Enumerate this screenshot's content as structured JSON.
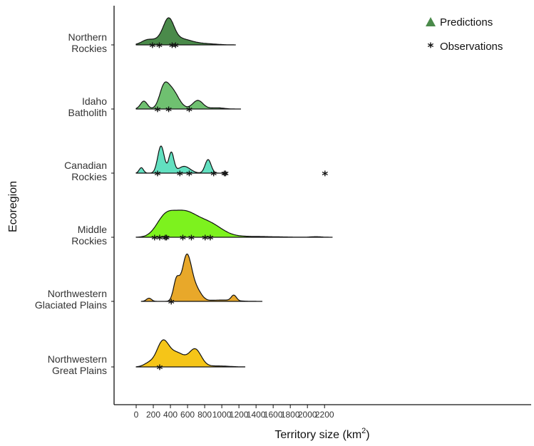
{
  "chart_data": {
    "type": "area",
    "subtype": "ridgeline-density",
    "xlabel": "Territory size (km",
    "xlabel_sup": "2",
    "xlabel_close": ")",
    "ylabel": "Ecoregion",
    "xlim": [
      -130,
      2300
    ],
    "xticks": [
      0,
      200,
      400,
      600,
      800,
      1000,
      1200,
      1400,
      1600,
      1800,
      2000,
      2200
    ],
    "grid": false,
    "legend_position": "top-right",
    "legend": [
      {
        "symbol": "triangle",
        "label": "Predictions",
        "color": "#4a8a4a"
      },
      {
        "symbol": "star",
        "label": "Observations",
        "color": "#111111"
      }
    ],
    "series": [
      {
        "label_lines": [
          "Northern",
          "Rockies"
        ],
        "color": "#4a8a4a",
        "scale": 1.0,
        "range": [
          0,
          1160
        ],
        "components": [
          [
            120,
            60,
            0.15
          ],
          [
            380,
            60,
            1.0
          ],
          [
            330,
            140,
            0.35
          ],
          [
            560,
            110,
            0.2
          ],
          [
            800,
            130,
            0.06
          ]
        ],
        "observations": [
          190,
          270,
          420,
          460
        ]
      },
      {
        "label_lines": [
          "Idaho",
          "Batholith"
        ],
        "color": "#6fc070",
        "scale": 1.0,
        "range": [
          0,
          1220
        ],
        "components": [
          [
            90,
            40,
            0.32
          ],
          [
            320,
            50,
            0.6
          ],
          [
            410,
            80,
            0.8
          ],
          [
            720,
            60,
            0.35
          ],
          [
            940,
            80,
            0.05
          ]
        ],
        "observations": [
          250,
          380,
          620
        ]
      },
      {
        "label_lines": [
          "Canadian",
          "Rockies"
        ],
        "color": "#62e0c0",
        "scale": 1.0,
        "range": [
          0,
          1060
        ],
        "components": [
          [
            60,
            25,
            0.2
          ],
          [
            290,
            38,
            1.0
          ],
          [
            410,
            30,
            0.75
          ],
          [
            560,
            70,
            0.25
          ],
          [
            840,
            35,
            0.5
          ]
        ],
        "observations": [
          250,
          510,
          620,
          905,
          1030,
          1045,
          2205
        ]
      },
      {
        "label_lines": [
          "Middle",
          "Rockies"
        ],
        "color": "#7df21e",
        "scale": 1.0,
        "range": [
          0,
          2290
        ],
        "components": [
          [
            330,
            100,
            0.55
          ],
          [
            550,
            150,
            0.85
          ],
          [
            850,
            150,
            0.45
          ],
          [
            1300,
            300,
            0.03
          ],
          [
            2100,
            60,
            0.02
          ]
        ],
        "observations": [
          215,
          275,
          340,
          355,
          545,
          645,
          805,
          865
        ]
      },
      {
        "label_lines": [
          "Northwestern",
          "Glaciated Plains"
        ],
        "color": "#e8a82a",
        "scale": 1.75,
        "range": [
          60,
          1470
        ],
        "components": [
          [
            150,
            30,
            0.07
          ],
          [
            470,
            35,
            0.45
          ],
          [
            590,
            55,
            1.0
          ],
          [
            700,
            60,
            0.25
          ],
          [
            1140,
            30,
            0.12
          ],
          [
            1000,
            150,
            0.03
          ]
        ],
        "observations": [
          410
        ]
      },
      {
        "label_lines": [
          "Northwestern",
          "Great Plains"
        ],
        "color": "#f5c518",
        "scale": 1.0,
        "range": [
          0,
          1270
        ],
        "components": [
          [
            150,
            60,
            0.15
          ],
          [
            310,
            70,
            1.0
          ],
          [
            480,
            90,
            0.55
          ],
          [
            690,
            70,
            0.7
          ],
          [
            950,
            130,
            0.04
          ]
        ],
        "observations": [
          275
        ]
      }
    ]
  }
}
